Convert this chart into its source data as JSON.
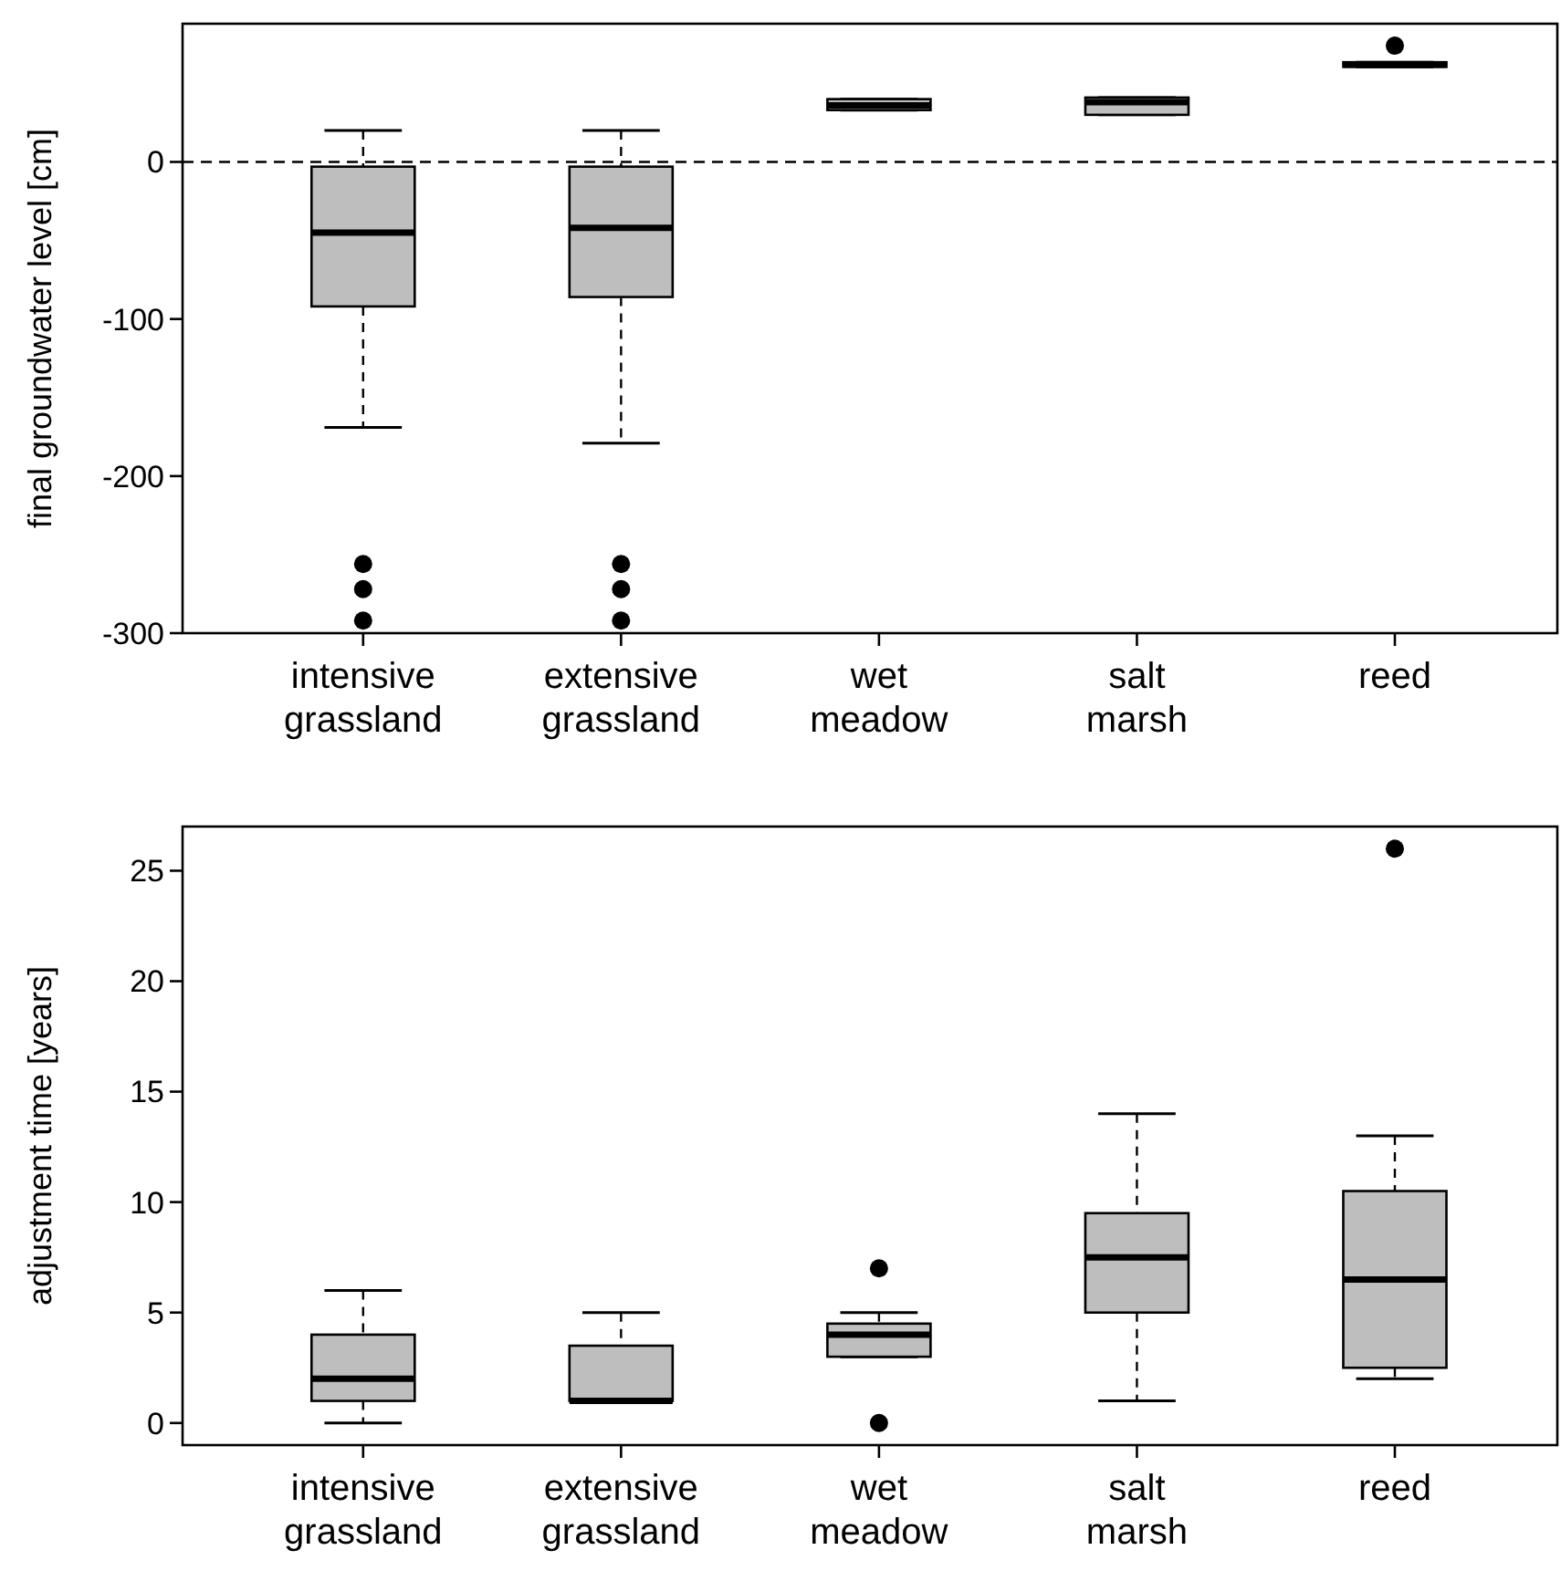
{
  "chart_data": [
    {
      "type": "box",
      "ylabel": "final groundwater level [cm]",
      "categories": [
        "intensive grassland",
        "extensive grassland",
        "wet meadow",
        "salt marsh",
        "reed"
      ],
      "ylim": [
        -300,
        88
      ],
      "yticks": [
        -300,
        -200,
        -100,
        0
      ],
      "ref_lines": [
        {
          "axis": "y",
          "value": 0,
          "line_style": "dashed"
        }
      ],
      "grid": false,
      "series": [
        {
          "color": "#bebebe",
          "boxes": [
            {
              "low": -169,
              "q1": -92,
              "median": -45,
              "q3": -3,
              "high": 20,
              "outliers": [
                -256,
                -272,
                -292
              ]
            },
            {
              "low": -179,
              "q1": -86,
              "median": -42,
              "q3": -3,
              "high": 20,
              "outliers": [
                -256,
                -272,
                -292
              ]
            },
            {
              "low": 33,
              "q1": 33,
              "median": 36,
              "q3": 40,
              "high": 40
            },
            {
              "low": 30,
              "q1": 30,
              "median": 38,
              "q3": 41,
              "high": 41
            },
            {
              "low": 60.5,
              "q1": 60.5,
              "median": 62,
              "q3": 63.5,
              "high": 63.5,
              "outliers": [
                74
              ]
            }
          ]
        }
      ]
    },
    {
      "type": "box",
      "ylabel": "adjustment time [years]",
      "categories": [
        "intensive grassland",
        "extensive grassland",
        "wet meadow",
        "salt marsh",
        "reed"
      ],
      "ylim": [
        -1,
        27
      ],
      "yticks": [
        0,
        5,
        10,
        15,
        20,
        25
      ],
      "grid": false,
      "series": [
        {
          "color": "#bebebe",
          "boxes": [
            {
              "low": 0,
              "q1": 1,
              "median": 2,
              "q3": 4,
              "high": 6
            },
            {
              "low": 1,
              "q1": 1,
              "median": 1,
              "q3": 3.5,
              "high": 5
            },
            {
              "low": 3,
              "q1": 3,
              "median": 4,
              "q3": 4.5,
              "high": 5,
              "outliers": [
                7,
                0
              ]
            },
            {
              "low": 1,
              "q1": 5,
              "median": 7.5,
              "q3": 9.5,
              "high": 14
            },
            {
              "low": 2,
              "q1": 2.5,
              "median": 6.5,
              "q3": 10.5,
              "high": 13,
              "outliers": [
                26
              ]
            }
          ]
        }
      ]
    }
  ]
}
